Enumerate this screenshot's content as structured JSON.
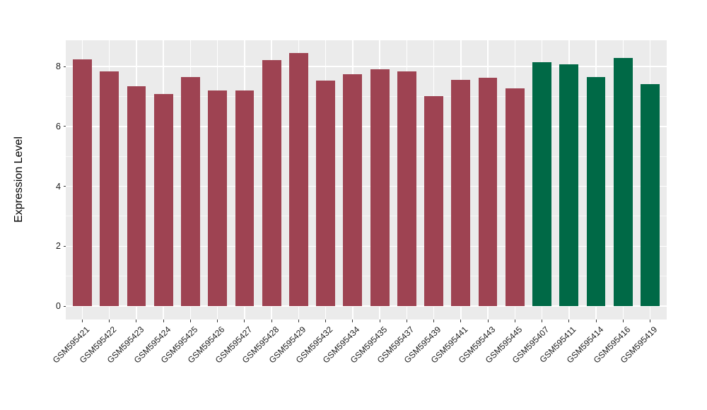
{
  "figure": {
    "background": "#FFFFFF",
    "panel_background": "#EBEBEB",
    "gridline_color": "#FFFFFF",
    "tick_color": "#333333",
    "text_color": "#1A1A1A"
  },
  "chart_data": {
    "type": "bar",
    "title": "",
    "xlabel": "",
    "ylabel": "Expression Level",
    "ylim": [
      -0.45,
      8.86
    ],
    "y_ticks": [
      0,
      2,
      4,
      6,
      8
    ],
    "y_minor_ticks": [
      1,
      3,
      5,
      7
    ],
    "grid": true,
    "legend_position": "none",
    "x_label_angle": 45,
    "categories": [
      "GSM595421",
      "GSM595422",
      "GSM595423",
      "GSM595424",
      "GSM595425",
      "GSM595426",
      "GSM595427",
      "GSM595428",
      "GSM595429",
      "GSM595432",
      "GSM595434",
      "GSM595435",
      "GSM595437",
      "GSM595439",
      "GSM595441",
      "GSM595443",
      "GSM595445",
      "GSM595407",
      "GSM595411",
      "GSM595414",
      "GSM595416",
      "GSM595419"
    ],
    "values": [
      8.24,
      7.84,
      7.33,
      7.09,
      7.65,
      7.19,
      7.19,
      8.21,
      8.44,
      7.53,
      7.73,
      7.91,
      7.83,
      7.02,
      7.55,
      7.62,
      7.26,
      8.13,
      8.07,
      7.65,
      8.28,
      7.42
    ],
    "bar_colors": [
      "#9E4352",
      "#9E4352",
      "#9E4352",
      "#9E4352",
      "#9E4352",
      "#9E4352",
      "#9E4352",
      "#9E4352",
      "#9E4352",
      "#9E4352",
      "#9E4352",
      "#9E4352",
      "#9E4352",
      "#9E4352",
      "#9E4352",
      "#9E4352",
      "#9E4352",
      "#006946",
      "#006946",
      "#006946",
      "#006946",
      "#006946"
    ],
    "palette": {
      "group_left": "#9E4352",
      "group_right": "#006946"
    }
  }
}
